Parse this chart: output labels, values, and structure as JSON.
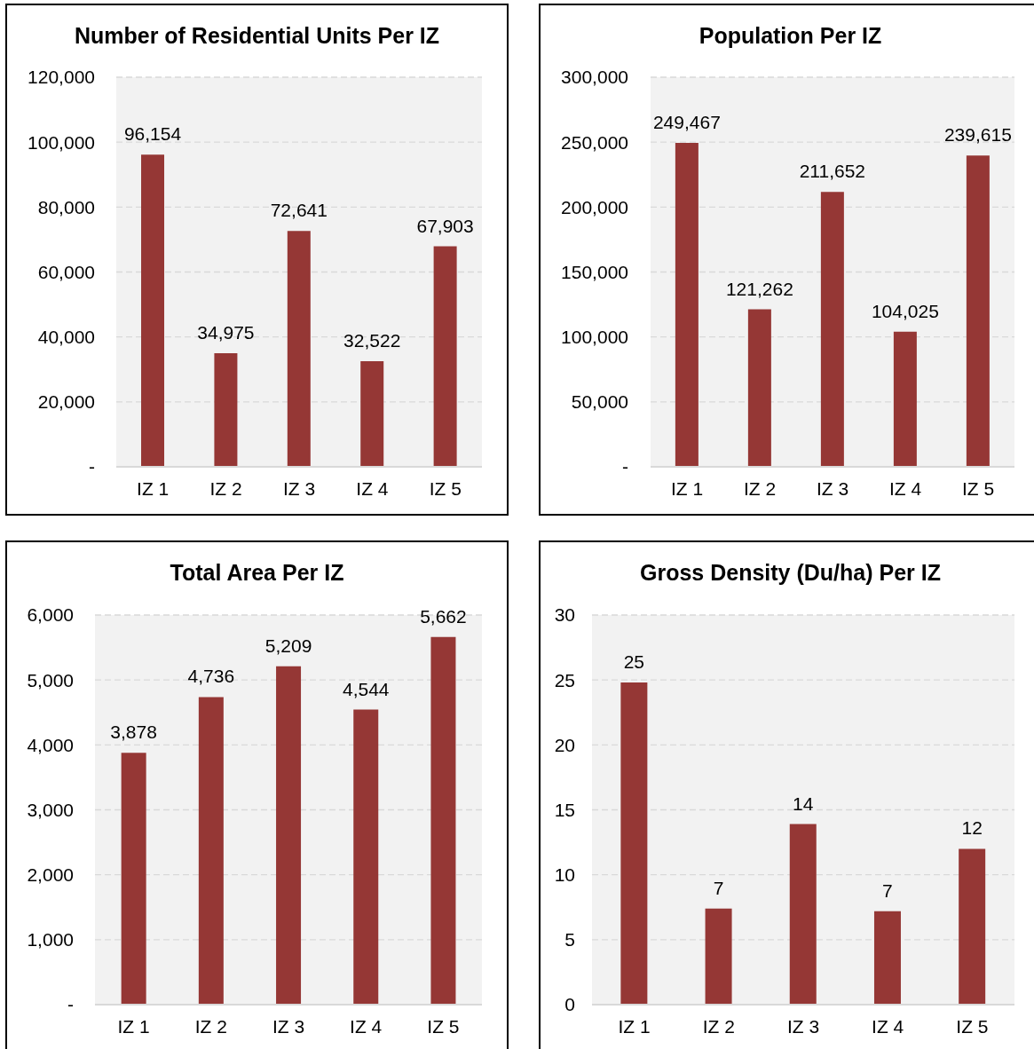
{
  "chart_data": [
    {
      "type": "bar",
      "title": "Number of Residential Units Per IZ",
      "categories": [
        "IZ 1",
        "IZ 2",
        "IZ 3",
        "IZ 4",
        "IZ 5"
      ],
      "values": [
        96154,
        34975,
        72641,
        32522,
        67903
      ],
      "value_labels": [
        "96,154",
        "34,975",
        "72,641",
        "32,522",
        "67,903"
      ],
      "color": "#953735",
      "ylim": [
        0,
        120000
      ],
      "yticks": [
        {
          "value": 0,
          "label": "-"
        },
        {
          "value": 20000,
          "label": "20,000"
        },
        {
          "value": 40000,
          "label": "40,000"
        },
        {
          "value": 60000,
          "label": "60,000"
        },
        {
          "value": 80000,
          "label": "80,000"
        },
        {
          "value": 100000,
          "label": "100,000"
        },
        {
          "value": 120000,
          "label": "120,000"
        }
      ],
      "grid": "y"
    },
    {
      "type": "bar",
      "title": "Population Per IZ",
      "categories": [
        "IZ 1",
        "IZ 2",
        "IZ 3",
        "IZ 4",
        "IZ 5"
      ],
      "values": [
        249467,
        121262,
        211652,
        104025,
        239615
      ],
      "value_labels": [
        "249,467",
        "121,262",
        "211,652",
        "104,025",
        "239,615"
      ],
      "color": "#953735",
      "ylim": [
        0,
        300000
      ],
      "yticks": [
        {
          "value": 0,
          "label": "-"
        },
        {
          "value": 50000,
          "label": "50,000"
        },
        {
          "value": 100000,
          "label": "100,000"
        },
        {
          "value": 150000,
          "label": "150,000"
        },
        {
          "value": 200000,
          "label": "200,000"
        },
        {
          "value": 250000,
          "label": "250,000"
        },
        {
          "value": 300000,
          "label": "300,000"
        }
      ],
      "grid": "y"
    },
    {
      "type": "bar",
      "title": "Total Area Per IZ",
      "categories": [
        "IZ 1",
        "IZ 2",
        "IZ 3",
        "IZ 4",
        "IZ 5"
      ],
      "values": [
        3878,
        4736,
        5209,
        4544,
        5662
      ],
      "value_labels": [
        "3,878",
        "4,736",
        "5,209",
        "4,544",
        "5,662"
      ],
      "color": "#953735",
      "ylim": [
        0,
        6000
      ],
      "yticks": [
        {
          "value": 0,
          "label": "-"
        },
        {
          "value": 1000,
          "label": "1,000"
        },
        {
          "value": 2000,
          "label": "2,000"
        },
        {
          "value": 3000,
          "label": "3,000"
        },
        {
          "value": 4000,
          "label": "4,000"
        },
        {
          "value": 5000,
          "label": "5,000"
        },
        {
          "value": 6000,
          "label": "6,000"
        }
      ],
      "grid": "y"
    },
    {
      "type": "bar",
      "title": "Gross Density (Du/ha) Per IZ",
      "categories": [
        "IZ 1",
        "IZ 2",
        "IZ 3",
        "IZ 4",
        "IZ 5"
      ],
      "values": [
        24.8,
        7.4,
        13.9,
        7.2,
        12.0
      ],
      "value_labels": [
        "25",
        "7",
        "14",
        "7",
        "12"
      ],
      "color": "#953735",
      "ylim": [
        0,
        30
      ],
      "yticks": [
        0,
        5,
        10,
        15,
        20,
        25,
        30
      ],
      "grid": "y"
    }
  ]
}
